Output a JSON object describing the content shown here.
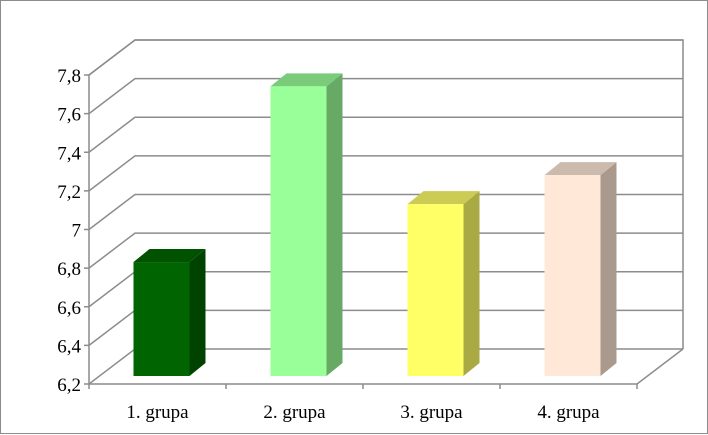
{
  "chart_data": {
    "type": "bar",
    "style": "3d-column",
    "categories": [
      "1. grupa",
      "2. grupa",
      "3. grupa",
      "4. grupa"
    ],
    "values": [
      6.79,
      7.7,
      7.09,
      7.24
    ],
    "ylim": [
      6.2,
      7.8
    ],
    "yticks": [
      "6,2",
      "6,4",
      "6,6",
      "6,8",
      "7",
      "7,2",
      "7,4",
      "7,6",
      "7,8"
    ],
    "grid": true,
    "legend": "none",
    "title": "",
    "xlabel": "",
    "ylabel": "",
    "bar_colors": [
      {
        "front": "#006400",
        "side": "#004200",
        "top": "#005200"
      },
      {
        "front": "#99ff99",
        "side": "#66aa66",
        "top": "#7acc7a"
      },
      {
        "front": "#ffff66",
        "side": "#aaaa44",
        "top": "#cccc55"
      },
      {
        "front": "#ffe8d8",
        "side": "#aa9a8e",
        "top": "#ccbaac"
      }
    ]
  }
}
